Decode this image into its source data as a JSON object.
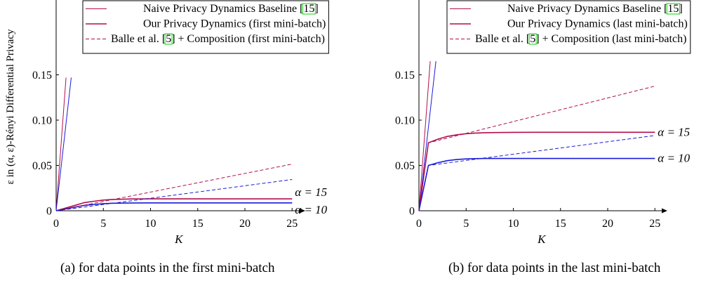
{
  "y_axis_label": "ε in (α, ε)-Rényi Differential Privacy",
  "colors": {
    "red": "#b10f4c",
    "blue": "#1a1adb"
  },
  "chart_data": [
    {
      "type": "line",
      "panel": "a",
      "caption": "(a) for data points in the first mini-batch",
      "xlabel": "K",
      "ylabel": "ε in (α, ε)-Rényi Differential Privacy",
      "xlim": [
        0,
        26
      ],
      "ylim": [
        0,
        0.15
      ],
      "xticks": [
        0,
        5,
        10,
        15,
        20,
        25
      ],
      "yticks": [
        0,
        0.05,
        0.1,
        0.15
      ],
      "ytick_labels": [
        "0",
        "0.05",
        "0.10",
        "0.15"
      ],
      "grid": false,
      "legend_position": "top-right",
      "legend": [
        {
          "text": "Naive Privacy Dynamics Baseline ",
          "ref": "15",
          "text_after": "",
          "style": "thin-solid",
          "color": "#b10f4c"
        },
        {
          "text": "Our Privacy Dynamics (first mini-batch)",
          "ref": "",
          "text_after": "",
          "style": "solid",
          "color": "#b10f4c"
        },
        {
          "text": "Balle et al. ",
          "ref": "5",
          "text_after": " + Composition (first mini-batch)",
          "style": "dashed",
          "color": "#b10f4c"
        }
      ],
      "series": [
        {
          "style": "thin-solid",
          "color": "#b10f4c",
          "x": [
            0,
            1.05
          ],
          "y": [
            0,
            0.147
          ]
        },
        {
          "style": "thin-solid",
          "color": "#1a1adb",
          "x": [
            0,
            1.6
          ],
          "y": [
            0,
            0.147
          ]
        },
        {
          "style": "solid",
          "color": "#b10f4c",
          "x": [
            0,
            1,
            2,
            3,
            4,
            5,
            6,
            8,
            10,
            15,
            20,
            25
          ],
          "y": [
            0,
            0.003,
            0.006,
            0.009,
            0.0105,
            0.0118,
            0.0125,
            0.013,
            0.0131,
            0.0131,
            0.0131,
            0.0131
          ]
        },
        {
          "style": "solid",
          "color": "#1a1adb",
          "x": [
            0,
            1,
            2,
            3,
            4,
            5,
            6,
            8,
            10,
            15,
            20,
            25
          ],
          "y": [
            0,
            0.002,
            0.004,
            0.006,
            0.007,
            0.0078,
            0.0083,
            0.0086,
            0.0087,
            0.0087,
            0.0087,
            0.0087
          ]
        },
        {
          "style": "dashed",
          "color": "#b10f4c",
          "x": [
            0,
            25
          ],
          "y": [
            0,
            0.0515
          ]
        },
        {
          "style": "dashed",
          "color": "#1a1adb",
          "x": [
            0,
            25
          ],
          "y": [
            0,
            0.0345
          ]
        }
      ],
      "annotations": [
        {
          "text": "α = 15",
          "x": 25.3,
          "y": 0.0131,
          "anchor": "bottom"
        },
        {
          "text": "α = 10",
          "x": 25.3,
          "y": 0.0087,
          "anchor": "top"
        }
      ]
    },
    {
      "type": "line",
      "panel": "b",
      "caption": "(b) for data points in the last mini-batch",
      "xlabel": "K",
      "ylabel": "",
      "xlim": [
        0,
        26
      ],
      "ylim": [
        0,
        0.15
      ],
      "xticks": [
        0,
        5,
        10,
        15,
        20,
        25
      ],
      "yticks": [
        0,
        0.05,
        0.1,
        0.15
      ],
      "ytick_labels": [
        "0",
        "0.05",
        "0.10",
        "0.15"
      ],
      "grid": false,
      "legend_position": "top-right",
      "legend": [
        {
          "text": "Naive Privacy Dynamics Baseline ",
          "ref": "15",
          "text_after": "",
          "style": "thin-solid",
          "color": "#b10f4c"
        },
        {
          "text": "Our Privacy Dynamics (last mini-batch)",
          "ref": "",
          "text_after": "",
          "style": "solid",
          "color": "#b10f4c"
        },
        {
          "text": "Balle et al. ",
          "ref": "5",
          "text_after": " + Composition (last mini-batch)",
          "style": "dashed",
          "color": "#b10f4c"
        }
      ],
      "series": [
        {
          "style": "thin-solid",
          "color": "#b10f4c",
          "x": [
            0,
            1.2
          ],
          "y": [
            0,
            0.165
          ]
        },
        {
          "style": "thin-solid",
          "color": "#1a1adb",
          "x": [
            0,
            1.8
          ],
          "y": [
            0,
            0.165
          ]
        },
        {
          "style": "solid",
          "color": "#b10f4c",
          "x": [
            0,
            1,
            2,
            3,
            4,
            5,
            6,
            7,
            8,
            10,
            15,
            20,
            25
          ],
          "y": [
            0,
            0.075,
            0.079,
            0.082,
            0.0838,
            0.085,
            0.0857,
            0.0861,
            0.0863,
            0.0865,
            0.0866,
            0.0866,
            0.0866
          ]
        },
        {
          "style": "solid",
          "color": "#1a1adb",
          "x": [
            0,
            1,
            2,
            3,
            4,
            5,
            6,
            7,
            8,
            10,
            15,
            20,
            25
          ],
          "y": [
            0,
            0.05,
            0.053,
            0.0553,
            0.0565,
            0.0572,
            0.0575,
            0.0577,
            0.0577,
            0.0577,
            0.0577,
            0.0577,
            0.0577
          ]
        },
        {
          "style": "dashed",
          "color": "#b10f4c",
          "x": [
            0,
            1,
            25
          ],
          "y": [
            0,
            0.075,
            0.1375
          ]
        },
        {
          "style": "dashed",
          "color": "#1a1adb",
          "x": [
            0,
            1,
            25
          ],
          "y": [
            0,
            0.05,
            0.083
          ]
        }
      ],
      "annotations": [
        {
          "text": "α = 15",
          "x": 25.3,
          "y": 0.0866,
          "anchor": "middle"
        },
        {
          "text": "α = 10",
          "x": 25.3,
          "y": 0.0577,
          "anchor": "middle"
        }
      ]
    }
  ]
}
